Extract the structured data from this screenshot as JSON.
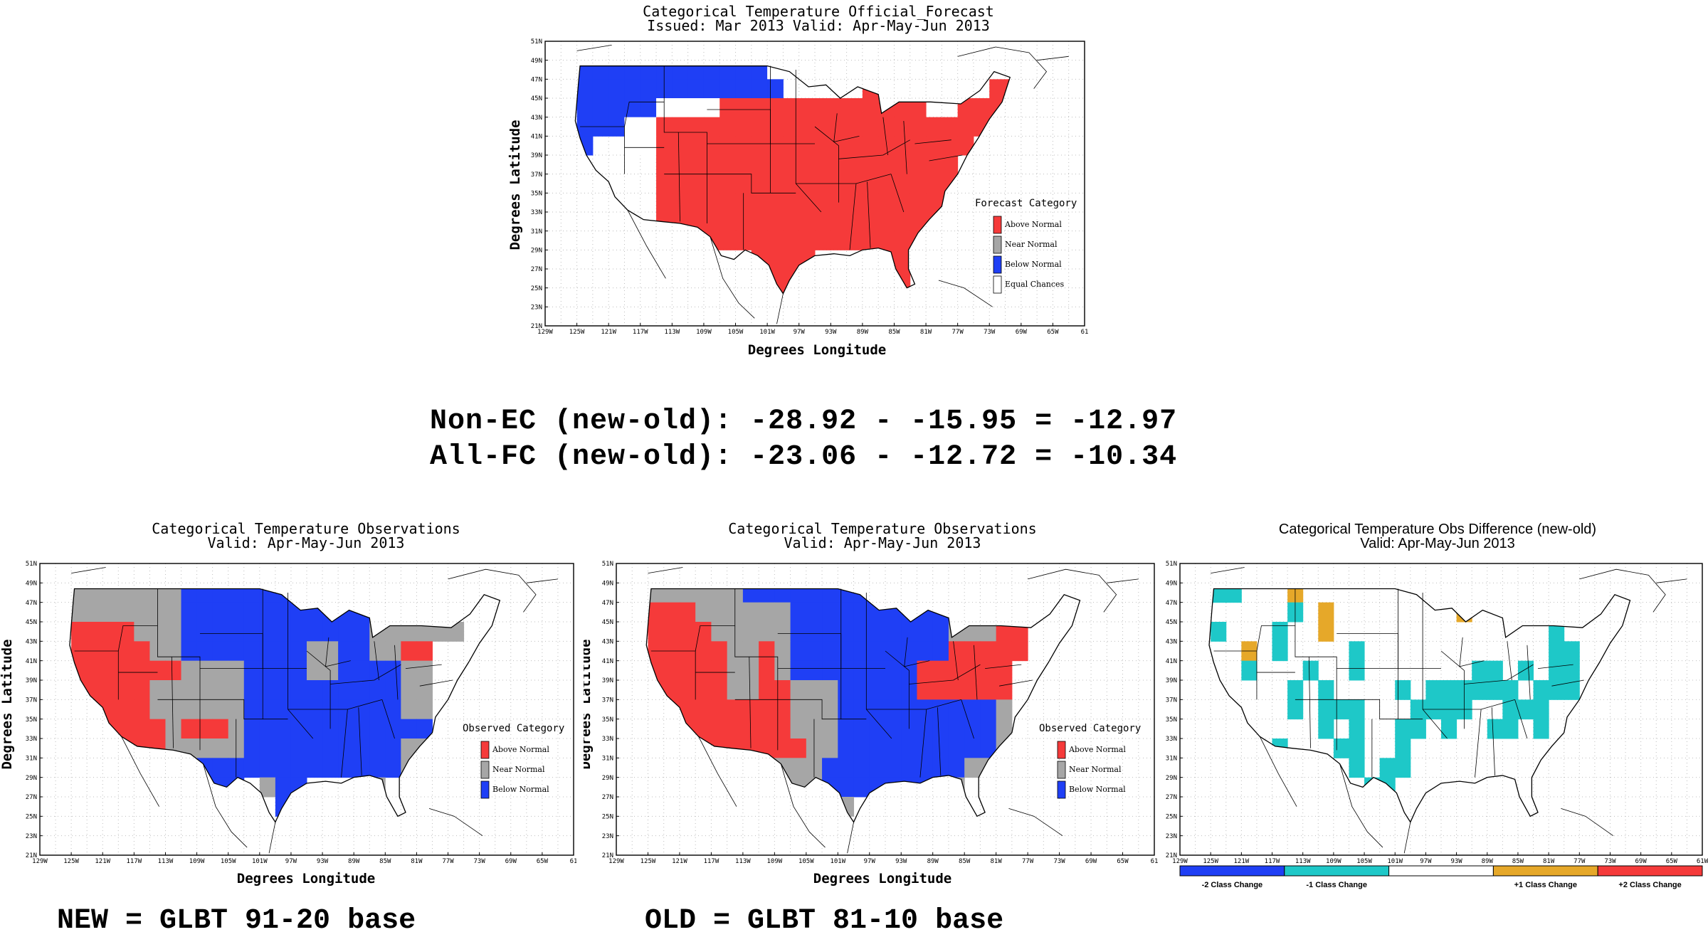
{
  "forecast_map": {
    "title_line1": "Categorical Temperature Official_Forecast",
    "title_line2": "Issued: Mar 2013 Valid: Apr-May-Jun 2013",
    "xlabel": "Degrees Longitude",
    "ylabel": "Degrees Latitude",
    "legend_title": "Forecast Category",
    "legend": [
      {
        "label": "Above Normal",
        "color": "#f53a3a"
      },
      {
        "label": "Near Normal",
        "color": "#a6a6a6"
      },
      {
        "label": "Below Normal",
        "color": "#1f3ff5"
      },
      {
        "label": "Equal Chances",
        "color": "#ffffff"
      }
    ]
  },
  "stats": {
    "line1": "Non-EC (new-old): -28.92 - -15.95 = -12.97",
    "line2": "All-FC (new-old): -23.06 - -12.72 = -10.34"
  },
  "obs_new_map": {
    "title_line1": "Categorical Temperature Observations",
    "title_line2": "Valid: Apr-May-Jun 2013",
    "xlabel": "Degrees Longitude",
    "ylabel": "Degrees Latitude",
    "legend_title": "Observed Category",
    "legend": [
      {
        "label": "Above Normal",
        "color": "#f53a3a"
      },
      {
        "label": "Near Normal",
        "color": "#a6a6a6"
      },
      {
        "label": "Below Normal",
        "color": "#1f3ff5"
      }
    ],
    "caption": "NEW = GLBT 91-20 base"
  },
  "obs_old_map": {
    "title_line1": "Categorical Temperature Observations",
    "title_line2": "Valid: Apr-May-Jun 2013",
    "xlabel": "Degrees Longitude",
    "ylabel": "Degrees Latitude",
    "legend_title": "Observed Category",
    "legend": [
      {
        "label": "Above Normal",
        "color": "#f53a3a"
      },
      {
        "label": "Near Normal",
        "color": "#a6a6a6"
      },
      {
        "label": "Below Normal",
        "color": "#1f3ff5"
      }
    ],
    "caption": "OLD = GLBT 81-10 base"
  },
  "diff_map": {
    "title_line1": "Categorical Temperature Obs Difference (new-old)",
    "title_line2": "Valid: Apr-May-Jun 2013",
    "colorbar": [
      {
        "label": "-2 Class Change",
        "color": "#1f3ff5"
      },
      {
        "label": "-1 Class Change",
        "color": "#1ec8c8"
      },
      {
        "label": "",
        "color": "#ffffff"
      },
      {
        "label": "+1 Class Change",
        "color": "#e6a829"
      },
      {
        "label": "+2 Class Change",
        "color": "#f53a3a"
      }
    ]
  },
  "axes": {
    "lon_ticks": [
      "129W",
      "125W",
      "121W",
      "117W",
      "113W",
      "109W",
      "105W",
      "101W",
      "97W",
      "93W",
      "89W",
      "85W",
      "81W",
      "77W",
      "73W",
      "69W",
      "65W",
      "61"
    ],
    "lon_ticks_diff": [
      "129W",
      "125W",
      "121W",
      "117W",
      "113W",
      "109W",
      "105W",
      "101W",
      "97W",
      "93W",
      "89W",
      "85W",
      "81W",
      "77W",
      "73W",
      "69W",
      "65W",
      "61W"
    ],
    "lat_ticks": [
      "51N",
      "49N",
      "47N",
      "45N",
      "43N",
      "41N",
      "39N",
      "37N",
      "35N",
      "33N",
      "31N",
      "29N",
      "27N",
      "25N",
      "23N",
      "21N"
    ]
  },
  "colors": {
    "above": "#f53a3a",
    "near": "#a6a6a6",
    "below": "#1f3ff5",
    "minus1": "#1ec8c8",
    "plus1": "#e6a829"
  }
}
